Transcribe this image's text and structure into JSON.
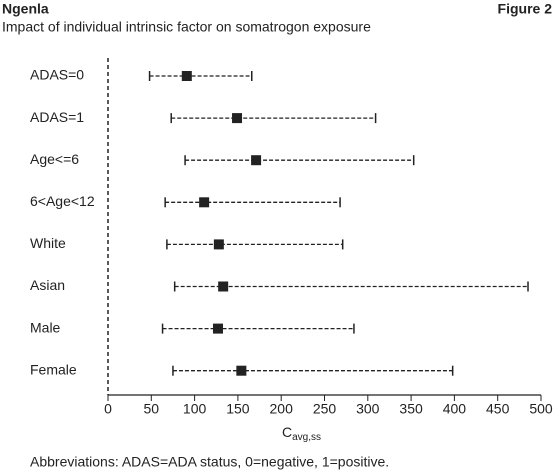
{
  "header": {
    "brand": "Ngenla",
    "figure": "Figure 2",
    "subtitle": "Impact of individual intrinsic factor on somatrogon exposure"
  },
  "chart_data": {
    "type": "forest",
    "categories": [
      "ADAS=0",
      "ADAS=1",
      "Age<=6",
      "6<Age<12",
      "White",
      "Asian",
      "Male",
      "Female"
    ],
    "values": [
      91,
      149,
      171,
      111,
      128,
      133,
      127,
      154
    ],
    "lower": [
      48,
      73,
      89,
      66,
      68,
      77,
      63,
      75
    ],
    "upper": [
      166,
      309,
      353,
      268,
      271,
      485,
      284,
      398
    ],
    "color": "#222222",
    "xlabel": {
      "main": "C",
      "sub": "avg,ss"
    },
    "xlim": [
      0,
      500
    ],
    "xticks": [
      0,
      50,
      100,
      150,
      200,
      250,
      300,
      350,
      400,
      450,
      500
    ]
  },
  "footnote": "Abbreviations: ADAS=ADA status, 0=negative, 1=positive."
}
